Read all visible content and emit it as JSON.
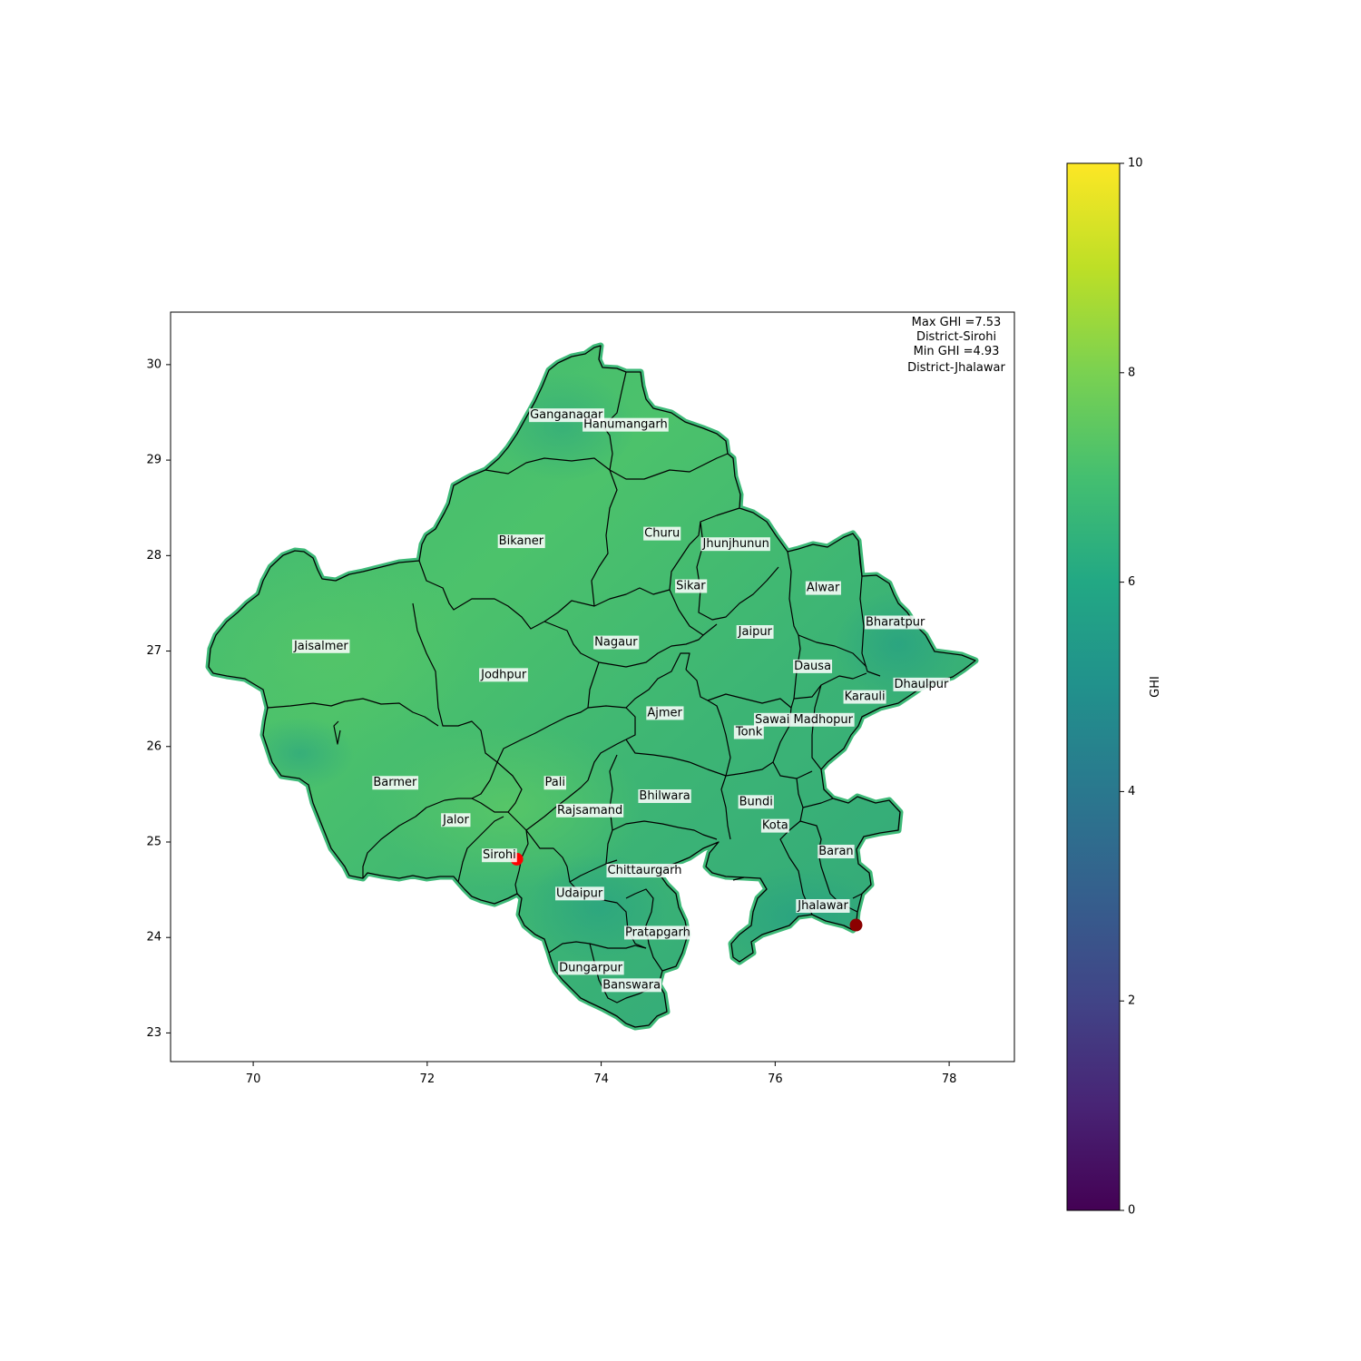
{
  "map": {
    "axes": {
      "x_ticks": [
        "70",
        "72",
        "74",
        "76",
        "78"
      ],
      "y_ticks": [
        "30",
        "29",
        "28",
        "27",
        "26",
        "25",
        "24",
        "23"
      ],
      "x_range": [
        69.05,
        78.75
      ],
      "y_range": [
        22.7,
        30.55
      ]
    },
    "annotation": {
      "line1": "Max GHI =7.53",
      "line2": "District-Sirohi",
      "line3": "Min GHI =4.93",
      "line4": "District-Jhalawar"
    },
    "markers": [
      {
        "name": "max-ghi-marker",
        "lon": 73.03,
        "lat": 24.82,
        "color": "#ff0000"
      },
      {
        "name": "min-ghi-marker",
        "lon": 76.93,
        "lat": 24.13,
        "color": "#8b0000"
      }
    ],
    "districts": [
      {
        "name": "Ganganagar",
        "lon": 73.6,
        "lat": 29.47
      },
      {
        "name": "Hanumangarh",
        "lon": 74.28,
        "lat": 29.37
      },
      {
        "name": "Bikaner",
        "lon": 73.08,
        "lat": 28.15
      },
      {
        "name": "Churu",
        "lon": 74.7,
        "lat": 28.23
      },
      {
        "name": "Jhunjhunun",
        "lon": 75.55,
        "lat": 28.12
      },
      {
        "name": "Sikar",
        "lon": 75.03,
        "lat": 27.68
      },
      {
        "name": "Alwar",
        "lon": 76.55,
        "lat": 27.66
      },
      {
        "name": "Bharatpur",
        "lon": 77.38,
        "lat": 27.3
      },
      {
        "name": "Jaisalmer",
        "lon": 70.78,
        "lat": 27.05
      },
      {
        "name": "Nagaur",
        "lon": 74.17,
        "lat": 27.09
      },
      {
        "name": "Jaipur",
        "lon": 75.77,
        "lat": 27.2
      },
      {
        "name": "Jodhpur",
        "lon": 72.88,
        "lat": 26.75
      },
      {
        "name": "Dausa",
        "lon": 76.43,
        "lat": 26.84
      },
      {
        "name": "Dhaulpur",
        "lon": 77.68,
        "lat": 26.65
      },
      {
        "name": "Karauli",
        "lon": 77.03,
        "lat": 26.52
      },
      {
        "name": "Ajmer",
        "lon": 74.73,
        "lat": 26.35
      },
      {
        "name": "Sawai Madhopur",
        "lon": 76.33,
        "lat": 26.28
      },
      {
        "name": "Tonk",
        "lon": 75.7,
        "lat": 26.15
      },
      {
        "name": "Barmer",
        "lon": 71.63,
        "lat": 25.62
      },
      {
        "name": "Pali",
        "lon": 73.47,
        "lat": 25.62
      },
      {
        "name": "Bhilwara",
        "lon": 74.73,
        "lat": 25.48
      },
      {
        "name": "Bundi",
        "lon": 75.78,
        "lat": 25.42
      },
      {
        "name": "Rajsamand",
        "lon": 73.87,
        "lat": 25.33
      },
      {
        "name": "Jalor",
        "lon": 72.33,
        "lat": 25.23
      },
      {
        "name": "Kota",
        "lon": 76.0,
        "lat": 25.17
      },
      {
        "name": "Baran",
        "lon": 76.7,
        "lat": 24.9
      },
      {
        "name": "Sirohi",
        "lon": 72.83,
        "lat": 24.86
      },
      {
        "name": "Chittaurgarh",
        "lon": 74.5,
        "lat": 24.7
      },
      {
        "name": "Udaipur",
        "lon": 73.75,
        "lat": 24.46
      },
      {
        "name": "Jhalawar",
        "lon": 76.55,
        "lat": 24.33
      },
      {
        "name": "Pratapgarh",
        "lon": 74.65,
        "lat": 24.05
      },
      {
        "name": "Dungarpur",
        "lon": 73.88,
        "lat": 23.68
      },
      {
        "name": "Banswara",
        "lon": 74.35,
        "lat": 23.5
      }
    ]
  },
  "colorbar": {
    "label": "GHI",
    "min": 0,
    "max": 10,
    "tick_labels": [
      "0",
      "2",
      "4",
      "6",
      "8",
      "10"
    ],
    "tick_values": [
      0,
      2,
      4,
      6,
      8,
      10
    ],
    "colormap": "viridis"
  }
}
